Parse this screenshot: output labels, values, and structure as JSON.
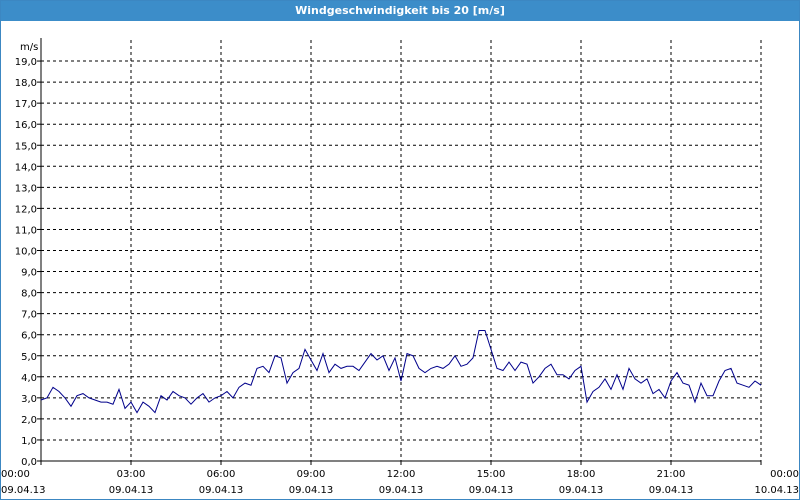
{
  "window": {
    "title": "Windgeschwindigkeit bis 20 [m/s]"
  },
  "chart_data": {
    "type": "line",
    "title": "Windgeschwindigkeit bis 20 [m/s]",
    "ylabel": "m/s",
    "xlabel": "",
    "ylim": [
      0,
      20
    ],
    "y_ticks": [
      "0,0",
      "1,0",
      "2,0",
      "3,0",
      "4,0",
      "5,0",
      "6,0",
      "7,0",
      "8,0",
      "9,0",
      "10,0",
      "11,0",
      "12,0",
      "13,0",
      "14,0",
      "15,0",
      "16,0",
      "17,0",
      "18,0",
      "19,0"
    ],
    "x_ticks": [
      {
        "time": "00:00",
        "date": "09.04.13"
      },
      {
        "time": "03:00",
        "date": "09.04.13"
      },
      {
        "time": "06:00",
        "date": "09.04.13"
      },
      {
        "time": "09:00",
        "date": "09.04.13"
      },
      {
        "time": "12:00",
        "date": "09.04.13"
      },
      {
        "time": "15:00",
        "date": "09.04.13"
      },
      {
        "time": "18:00",
        "date": "09.04.13"
      },
      {
        "time": "21:00",
        "date": "09.04.13"
      },
      {
        "time": "00:00",
        "date": "10.04.13"
      }
    ],
    "x_unit": "hours since 09.04.13 00:00",
    "line_color": "#00008b",
    "grid": true,
    "series": [
      {
        "name": "",
        "x": [
          0,
          0.2,
          0.4,
          0.6,
          0.8,
          1.0,
          1.2,
          1.4,
          1.6,
          1.8,
          2.0,
          2.2,
          2.4,
          2.6,
          2.8,
          3.0,
          3.2,
          3.4,
          3.6,
          3.8,
          4.0,
          4.2,
          4.4,
          4.6,
          4.8,
          5.0,
          5.2,
          5.4,
          5.6,
          5.8,
          6.0,
          6.2,
          6.4,
          6.6,
          6.8,
          7.0,
          7.2,
          7.4,
          7.6,
          7.8,
          8.0,
          8.2,
          8.4,
          8.6,
          8.8,
          9.0,
          9.2,
          9.4,
          9.6,
          9.8,
          10.0,
          10.2,
          10.4,
          10.6,
          10.8,
          11.0,
          11.2,
          11.4,
          11.6,
          11.8,
          12.0,
          12.2,
          12.4,
          12.6,
          12.8,
          13.0,
          13.2,
          13.4,
          13.6,
          13.8,
          14.0,
          14.2,
          14.4,
          14.6,
          14.8,
          15.0,
          15.2,
          15.4,
          15.6,
          15.8,
          16.0,
          16.2,
          16.4,
          16.6,
          16.8,
          17.0,
          17.2,
          17.4,
          17.6,
          17.8,
          18.0,
          18.2,
          18.4,
          18.6,
          18.8,
          19.0,
          19.2,
          19.4,
          19.6,
          19.8,
          20.0,
          20.2,
          20.4,
          20.6,
          20.8,
          21.0,
          21.2,
          21.4,
          21.6,
          21.8,
          22.0,
          22.2,
          22.4,
          22.6,
          22.8,
          23.0,
          23.2,
          23.4,
          23.6,
          23.8,
          24.0
        ],
        "values": [
          2.9,
          3.0,
          3.5,
          3.3,
          3.0,
          2.6,
          3.1,
          3.2,
          3.0,
          2.9,
          2.8,
          2.8,
          2.7,
          3.4,
          2.5,
          2.8,
          2.3,
          2.8,
          2.6,
          2.3,
          3.1,
          2.9,
          3.3,
          3.1,
          3.0,
          2.7,
          3.0,
          3.2,
          2.8,
          3.0,
          3.1,
          3.3,
          3.0,
          3.5,
          3.7,
          3.6,
          4.4,
          4.5,
          4.2,
          5.0,
          4.9,
          3.7,
          4.2,
          4.4,
          5.3,
          4.8,
          4.3,
          5.1,
          4.2,
          4.6,
          4.4,
          4.5,
          4.5,
          4.3,
          4.7,
          5.1,
          4.8,
          5.0,
          4.3,
          4.9,
          3.8,
          5.1,
          5.0,
          4.4,
          4.2,
          4.4,
          4.5,
          4.4,
          4.6,
          5.0,
          4.5,
          4.6,
          4.9,
          6.2,
          6.2,
          5.3,
          4.4,
          4.3,
          4.7,
          4.3,
          4.7,
          4.6,
          3.7,
          4.0,
          4.4,
          4.6,
          4.1,
          4.1,
          3.9,
          4.3,
          4.5,
          2.8,
          3.3,
          3.5,
          3.9,
          3.4,
          4.1,
          3.4,
          4.4,
          3.9,
          3.7,
          3.9,
          3.2,
          3.4,
          3.0,
          3.8,
          4.2,
          3.7,
          3.6,
          2.8,
          3.7,
          3.1,
          3.1,
          3.8,
          4.3,
          4.4,
          3.7,
          3.6,
          3.5,
          3.8,
          3.6
        ]
      }
    ]
  }
}
